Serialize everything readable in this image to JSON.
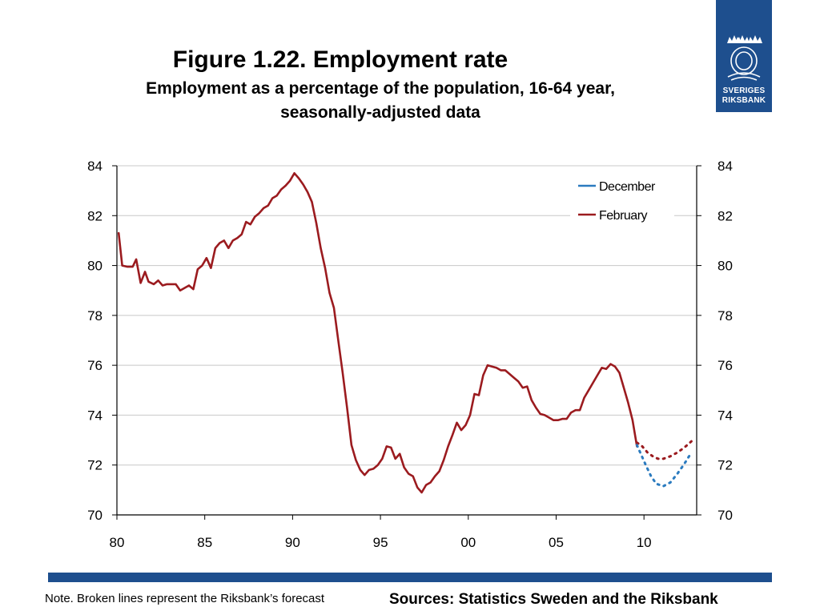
{
  "header": {
    "title": "Figure 1.22. Employment rate",
    "subtitle_line1": "Employment as a percentage of the population, 16-64 year,",
    "subtitle_line2": "seasonally-adjusted data"
  },
  "logo": {
    "line1": "SVERIGES",
    "line2": "RIKSBANK",
    "icon": "crown-crest-icon"
  },
  "footer": {
    "note": "Note. Broken lines represent the Riksbank’s forecast",
    "sources": "Sources: Statistics Sweden and the Riksbank",
    "bar_color": "#1e4f8e"
  },
  "chart_data": {
    "type": "line",
    "title": "",
    "xlabel": "",
    "ylabel": "",
    "xlim": [
      1980,
      2013
    ],
    "ylim": [
      70,
      84
    ],
    "x_ticks": [
      {
        "value": 1980,
        "label": "80"
      },
      {
        "value": 1985,
        "label": "85"
      },
      {
        "value": 1990,
        "label": "90"
      },
      {
        "value": 1995,
        "label": "95"
      },
      {
        "value": 2000,
        "label": "00"
      },
      {
        "value": 2005,
        "label": "05"
      },
      {
        "value": 2010,
        "label": "10"
      }
    ],
    "y_ticks": [
      70,
      72,
      74,
      76,
      78,
      80,
      82,
      84
    ],
    "y_axis_right": true,
    "grid": "horizontal",
    "legend": {
      "position": "top-right",
      "items": [
        "December",
        "February"
      ]
    },
    "series": [
      {
        "name": "February",
        "color": "#9b1b1f",
        "style": "solid",
        "points": [
          [
            1980.1,
            81.3
          ],
          [
            1980.3,
            80.0
          ],
          [
            1980.6,
            79.95
          ],
          [
            1980.9,
            79.95
          ],
          [
            1981.1,
            80.25
          ],
          [
            1981.35,
            79.3
          ],
          [
            1981.6,
            79.75
          ],
          [
            1981.8,
            79.35
          ],
          [
            1982.1,
            79.25
          ],
          [
            1982.35,
            79.4
          ],
          [
            1982.6,
            79.2
          ],
          [
            1982.85,
            79.25
          ],
          [
            1983.1,
            79.25
          ],
          [
            1983.35,
            79.25
          ],
          [
            1983.6,
            79.0
          ],
          [
            1983.85,
            79.1
          ],
          [
            1984.1,
            79.2
          ],
          [
            1984.35,
            79.05
          ],
          [
            1984.6,
            79.85
          ],
          [
            1984.85,
            80.0
          ],
          [
            1985.1,
            80.3
          ],
          [
            1985.35,
            79.9
          ],
          [
            1985.6,
            80.7
          ],
          [
            1985.85,
            80.9
          ],
          [
            1986.1,
            81.0
          ],
          [
            1986.35,
            80.7
          ],
          [
            1986.6,
            81.0
          ],
          [
            1986.85,
            81.1
          ],
          [
            1987.1,
            81.25
          ],
          [
            1987.35,
            81.75
          ],
          [
            1987.6,
            81.65
          ],
          [
            1987.85,
            81.95
          ],
          [
            1988.1,
            82.1
          ],
          [
            1988.35,
            82.3
          ],
          [
            1988.6,
            82.4
          ],
          [
            1988.85,
            82.7
          ],
          [
            1989.1,
            82.8
          ],
          [
            1989.35,
            83.05
          ],
          [
            1989.6,
            83.2
          ],
          [
            1989.85,
            83.4
          ],
          [
            1990.1,
            83.7
          ],
          [
            1990.35,
            83.5
          ],
          [
            1990.6,
            83.25
          ],
          [
            1990.85,
            82.95
          ],
          [
            1991.1,
            82.55
          ],
          [
            1991.35,
            81.7
          ],
          [
            1991.6,
            80.7
          ],
          [
            1991.85,
            79.9
          ],
          [
            1992.1,
            78.9
          ],
          [
            1992.35,
            78.3
          ],
          [
            1992.6,
            77.0
          ],
          [
            1992.85,
            75.7
          ],
          [
            1993.1,
            74.3
          ],
          [
            1993.35,
            72.8
          ],
          [
            1993.6,
            72.2
          ],
          [
            1993.85,
            71.8
          ],
          [
            1994.1,
            71.6
          ],
          [
            1994.35,
            71.8
          ],
          [
            1994.6,
            71.85
          ],
          [
            1994.85,
            72.0
          ],
          [
            1995.1,
            72.25
          ],
          [
            1995.35,
            72.75
          ],
          [
            1995.6,
            72.7
          ],
          [
            1995.85,
            72.25
          ],
          [
            1996.1,
            72.45
          ],
          [
            1996.35,
            71.9
          ],
          [
            1996.6,
            71.65
          ],
          [
            1996.85,
            71.55
          ],
          [
            1997.1,
            71.1
          ],
          [
            1997.35,
            70.9
          ],
          [
            1997.6,
            71.2
          ],
          [
            1997.85,
            71.3
          ],
          [
            1998.1,
            71.55
          ],
          [
            1998.35,
            71.75
          ],
          [
            1998.6,
            72.2
          ],
          [
            1998.85,
            72.75
          ],
          [
            1999.1,
            73.2
          ],
          [
            1999.35,
            73.7
          ],
          [
            1999.6,
            73.4
          ],
          [
            1999.85,
            73.6
          ],
          [
            2000.1,
            74.0
          ],
          [
            2000.35,
            74.85
          ],
          [
            2000.6,
            74.8
          ],
          [
            2000.85,
            75.6
          ],
          [
            2001.1,
            76.0
          ],
          [
            2001.35,
            75.95
          ],
          [
            2001.6,
            75.9
          ],
          [
            2001.85,
            75.8
          ],
          [
            2002.1,
            75.8
          ],
          [
            2002.35,
            75.65
          ],
          [
            2002.6,
            75.5
          ],
          [
            2002.85,
            75.35
          ],
          [
            2003.1,
            75.1
          ],
          [
            2003.35,
            75.15
          ],
          [
            2003.6,
            74.6
          ],
          [
            2003.85,
            74.3
          ],
          [
            2004.1,
            74.05
          ],
          [
            2004.35,
            74.0
          ],
          [
            2004.6,
            73.9
          ],
          [
            2004.85,
            73.8
          ],
          [
            2005.1,
            73.8
          ],
          [
            2005.35,
            73.85
          ],
          [
            2005.6,
            73.85
          ],
          [
            2005.85,
            74.1
          ],
          [
            2006.1,
            74.2
          ],
          [
            2006.35,
            74.2
          ],
          [
            2006.6,
            74.7
          ],
          [
            2006.85,
            75.0
          ],
          [
            2007.1,
            75.3
          ],
          [
            2007.35,
            75.6
          ],
          [
            2007.6,
            75.9
          ],
          [
            2007.85,
            75.85
          ],
          [
            2008.1,
            76.05
          ],
          [
            2008.35,
            75.95
          ],
          [
            2008.6,
            75.7
          ],
          [
            2008.85,
            75.1
          ],
          [
            2009.1,
            74.5
          ],
          [
            2009.35,
            73.8
          ],
          [
            2009.6,
            72.75
          ]
        ]
      },
      {
        "name": "February forecast",
        "legend": false,
        "color": "#9b1b1f",
        "style": "dashed",
        "points": [
          [
            2009.6,
            72.9
          ],
          [
            2009.9,
            72.75
          ],
          [
            2010.2,
            72.5
          ],
          [
            2010.5,
            72.35
          ],
          [
            2010.8,
            72.25
          ],
          [
            2011.1,
            72.25
          ],
          [
            2011.5,
            72.35
          ],
          [
            2011.9,
            72.5
          ],
          [
            2012.3,
            72.7
          ],
          [
            2012.7,
            72.95
          ]
        ]
      },
      {
        "name": "December",
        "color": "#2b7bbf",
        "style": "dashed",
        "points": [
          [
            2009.6,
            72.8
          ],
          [
            2009.85,
            72.4
          ],
          [
            2010.1,
            72.0
          ],
          [
            2010.4,
            71.55
          ],
          [
            2010.7,
            71.25
          ],
          [
            2011.1,
            71.15
          ],
          [
            2011.5,
            71.3
          ],
          [
            2011.9,
            71.65
          ],
          [
            2012.3,
            72.05
          ],
          [
            2012.7,
            72.5
          ]
        ]
      }
    ]
  }
}
